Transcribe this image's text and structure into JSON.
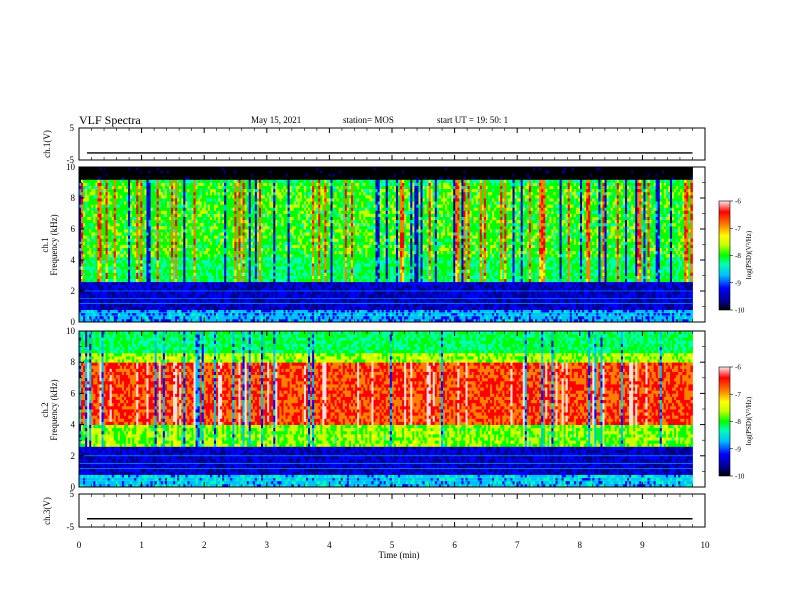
{
  "header": {
    "title": "VLF Spectra",
    "date": "May 15, 2021",
    "station": "station= MOS",
    "start": "start  UT  =    19: 50: 1"
  },
  "chart_data": [
    {
      "name": "ch1-waveform",
      "type": "line",
      "ylabel": "ch.1(V)",
      "ylim": [
        -5,
        5
      ],
      "ytick_labels": [
        "5",
        "-5"
      ],
      "series_values": "flat near -2.8 V (approx) across 0–9.8 min"
    },
    {
      "name": "ch1-spectrogram",
      "type": "heatmap",
      "ylabel_line1": "ch.1",
      "ylabel_line2": "Frequency (kHz)",
      "ylim": [
        0,
        10
      ],
      "ytick_labels": [
        "0",
        "2",
        "4",
        "6",
        "8",
        "10"
      ],
      "colorbar": {
        "label": "log(PSD)(V²/Hz)",
        "range": [
          -10,
          -6
        ],
        "tick_labels": [
          "-6",
          "-7",
          "-8",
          "-9",
          "-10"
        ]
      },
      "bands": [
        {
          "from_khz": 0,
          "to_khz": 2.5,
          "level": "low (dark blue)"
        },
        {
          "from_khz": 2.5,
          "to_khz": 9.2,
          "level": "mid (green/cyan with yellow-red bursts)"
        },
        {
          "from_khz": 9.2,
          "to_khz": 10,
          "level": "lowest (black)"
        }
      ]
    },
    {
      "name": "ch2-spectrogram",
      "type": "heatmap",
      "ylabel_line1": "ch.2",
      "ylabel_line2": "Frequency (kHz)",
      "ylim": [
        0,
        10
      ],
      "ytick_labels": [
        "0",
        "2",
        "4",
        "6",
        "8",
        "10"
      ],
      "colorbar": {
        "label": "log(PSD)(V²/Hz)",
        "range": [
          -10,
          -6
        ],
        "tick_labels": [
          "-6",
          "-7",
          "-8",
          "-9",
          "-10"
        ]
      },
      "bands": [
        {
          "from_khz": 0,
          "to_khz": 2.5,
          "level": "low (dark blue)"
        },
        {
          "from_khz": 2.5,
          "to_khz": 4,
          "level": "mid (green)"
        },
        {
          "from_khz": 4,
          "to_khz": 8,
          "level": "high (red)"
        },
        {
          "from_khz": 8,
          "to_khz": 10,
          "level": "mid (green/cyan)"
        }
      ]
    },
    {
      "name": "ch3-waveform",
      "type": "line",
      "ylabel": "ch.3(V)",
      "ylim": [
        -5,
        5
      ],
      "ytick_labels": [
        "5",
        "-5"
      ],
      "series_values": "flat near -2.5 V (approx) across 0–9.8 min"
    }
  ],
  "x_axis": {
    "label": "Time  (min)",
    "range": [
      0,
      10
    ],
    "tick_labels": [
      "0",
      "1",
      "2",
      "3",
      "4",
      "5",
      "6",
      "7",
      "8",
      "9",
      "10"
    ],
    "data_end_min": 9.8
  },
  "colors": {
    "colormap": [
      "#000000",
      "#00008b",
      "#0000ff",
      "#00bfff",
      "#00ffb0",
      "#00ff00",
      "#c8ff00",
      "#ffff00",
      "#ff8000",
      "#ff0000",
      "#ffe0e0"
    ],
    "axes": "#000000",
    "trace": "#000000"
  }
}
